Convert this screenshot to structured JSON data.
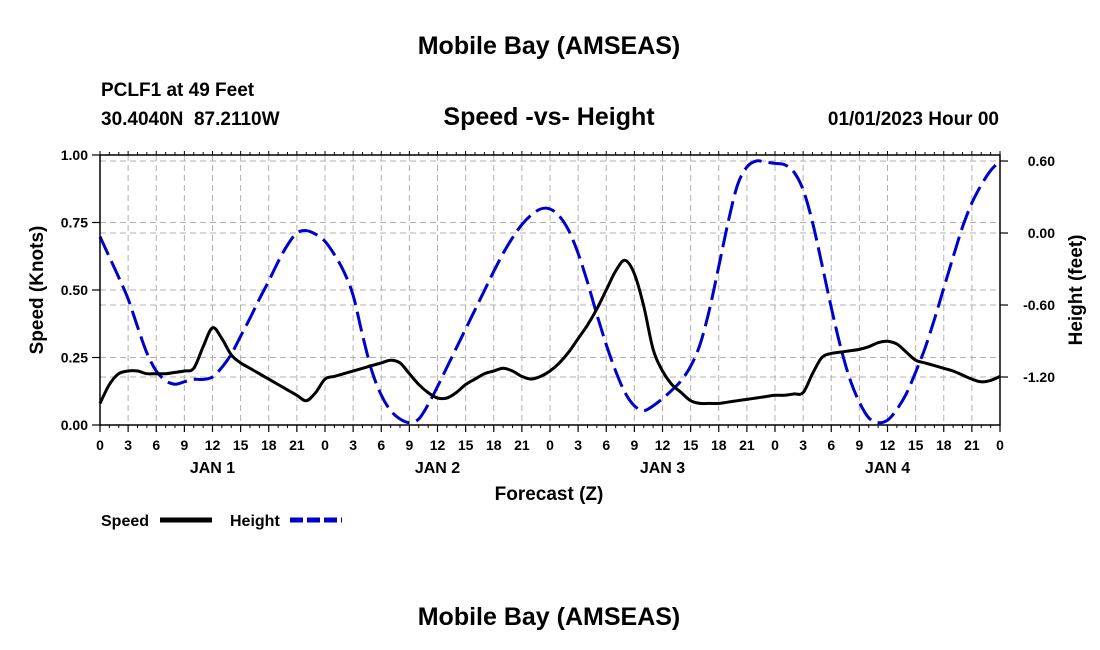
{
  "title": "Mobile Bay (AMSEAS)",
  "station_line": "PCLF1 at 49 Feet",
  "coords_line": "30.4040N  87.2110W",
  "chart_title": "Speed -vs- Height",
  "date_line": "01/01/2023 Hour 00",
  "footer_title": "Mobile Bay (AMSEAS)",
  "colors": {
    "speed": "#000000",
    "height": "#0000cc",
    "grid": "#b0b0b0"
  },
  "chart_data": {
    "type": "line",
    "title": "Speed -vs- Height",
    "xlabel": "Forecast (Z)",
    "ylabel": "Speed (Knots)",
    "y2label": "Height (feet)",
    "x_unit": "hours from 01/01/2023 00Z",
    "xlim": [
      0,
      96
    ],
    "ylim": [
      0,
      1
    ],
    "y2lim": [
      -1.6,
      0.65
    ],
    "grid": true,
    "x_ticks": [
      0,
      3,
      6,
      9,
      12,
      15,
      18,
      21,
      24,
      27,
      30,
      33,
      36,
      39,
      42,
      45,
      48,
      51,
      54,
      57,
      60,
      63,
      66,
      69,
      72,
      75,
      78,
      81,
      84,
      87,
      90,
      93,
      96
    ],
    "x_tick_labels": [
      "0",
      "3",
      "6",
      "9",
      "12",
      "15",
      "18",
      "21",
      "0",
      "3",
      "6",
      "9",
      "12",
      "15",
      "18",
      "21",
      "0",
      "3",
      "6",
      "9",
      "12",
      "15",
      "18",
      "21",
      "0",
      "3",
      "6",
      "9",
      "12",
      "15",
      "18",
      "21",
      "0"
    ],
    "day_labels": [
      {
        "x": 12,
        "label": "JAN 1"
      },
      {
        "x": 36,
        "label": "JAN 2"
      },
      {
        "x": 60,
        "label": "JAN 3"
      },
      {
        "x": 84,
        "label": "JAN 4"
      }
    ],
    "y_ticks": [
      0,
      0.25,
      0.5,
      0.75,
      1.0
    ],
    "y_tick_labels": [
      "0.00",
      "0.25",
      "0.50",
      "0.75",
      "1.00"
    ],
    "y2_ticks": [
      0.6,
      0.0,
      -0.6,
      -1.2
    ],
    "y2_tick_labels": [
      "0.60",
      "0.00",
      "-0.60",
      "-1.20"
    ],
    "legend_position": "bottom-left",
    "series": [
      {
        "name": "Speed",
        "axis": "left",
        "style": "solid",
        "x": [
          0,
          1,
          2,
          3,
          4,
          5,
          6,
          7,
          8,
          9,
          10,
          11,
          12,
          13,
          14,
          15,
          16,
          17,
          18,
          19,
          20,
          21,
          22,
          23,
          24,
          25,
          26,
          27,
          28,
          29,
          30,
          31,
          32,
          33,
          34,
          35,
          36,
          37,
          38,
          39,
          40,
          41,
          42,
          43,
          44,
          45,
          46,
          47,
          48,
          49,
          50,
          51,
          52,
          53,
          54,
          55,
          56,
          57,
          58,
          59,
          60,
          61,
          62,
          63,
          64,
          65,
          66,
          67,
          68,
          69,
          70,
          71,
          72,
          73,
          74,
          75,
          76,
          77,
          78,
          79,
          80,
          81,
          82,
          83,
          84,
          85,
          86,
          87,
          88,
          89,
          90,
          91,
          92,
          93,
          94,
          95,
          96
        ],
        "values": [
          0.08,
          0.15,
          0.19,
          0.2,
          0.2,
          0.19,
          0.19,
          0.19,
          0.195,
          0.2,
          0.21,
          0.29,
          0.36,
          0.32,
          0.26,
          0.23,
          0.21,
          0.19,
          0.17,
          0.15,
          0.13,
          0.11,
          0.09,
          0.12,
          0.17,
          0.18,
          0.19,
          0.2,
          0.21,
          0.22,
          0.23,
          0.24,
          0.23,
          0.19,
          0.15,
          0.12,
          0.1,
          0.1,
          0.12,
          0.15,
          0.17,
          0.19,
          0.2,
          0.21,
          0.2,
          0.18,
          0.17,
          0.18,
          0.2,
          0.23,
          0.27,
          0.32,
          0.37,
          0.43,
          0.5,
          0.57,
          0.61,
          0.56,
          0.44,
          0.28,
          0.2,
          0.15,
          0.12,
          0.09,
          0.08,
          0.08,
          0.08,
          0.085,
          0.09,
          0.095,
          0.1,
          0.105,
          0.11,
          0.11,
          0.115,
          0.12,
          0.19,
          0.25,
          0.265,
          0.27,
          0.275,
          0.28,
          0.29,
          0.305,
          0.31,
          0.3,
          0.27,
          0.24,
          0.23,
          0.22,
          0.21,
          0.2,
          0.185,
          0.17,
          0.16,
          0.165,
          0.18
        ]
      },
      {
        "name": "Height",
        "axis": "right",
        "style": "dashed",
        "x": [
          0,
          1,
          2,
          3,
          4,
          5,
          6,
          7,
          8,
          9,
          10,
          11,
          12,
          13,
          14,
          15,
          16,
          17,
          18,
          19,
          20,
          21,
          22,
          23,
          24,
          25,
          26,
          27,
          28,
          29,
          30,
          31,
          32,
          33,
          34,
          35,
          36,
          37,
          38,
          39,
          40,
          41,
          42,
          43,
          44,
          45,
          46,
          47,
          48,
          49,
          50,
          51,
          52,
          53,
          54,
          55,
          56,
          57,
          58,
          59,
          60,
          61,
          62,
          63,
          64,
          65,
          66,
          67,
          68,
          69,
          70,
          71,
          72,
          73,
          74,
          75,
          76,
          77,
          78,
          79,
          80,
          81,
          82,
          83,
          84,
          85,
          86,
          87,
          88,
          89,
          90,
          91,
          92,
          93,
          94,
          95,
          96
        ],
        "values": [
          -0.03,
          -0.2,
          -0.37,
          -0.55,
          -0.78,
          -1.0,
          -1.15,
          -1.23,
          -1.26,
          -1.24,
          -1.22,
          -1.22,
          -1.2,
          -1.12,
          -1.01,
          -0.86,
          -0.71,
          -0.55,
          -0.4,
          -0.24,
          -0.1,
          0.0,
          0.02,
          -0.01,
          -0.07,
          -0.18,
          -0.32,
          -0.52,
          -0.85,
          -1.15,
          -1.35,
          -1.48,
          -1.55,
          -1.58,
          -1.55,
          -1.43,
          -1.28,
          -1.12,
          -0.96,
          -0.8,
          -0.64,
          -0.48,
          -0.32,
          -0.17,
          -0.04,
          0.07,
          0.15,
          0.2,
          0.2,
          0.14,
          0.02,
          -0.17,
          -0.41,
          -0.68,
          -0.93,
          -1.15,
          -1.33,
          -1.44,
          -1.48,
          -1.44,
          -1.38,
          -1.31,
          -1.23,
          -1.11,
          -0.93,
          -0.64,
          -0.28,
          0.09,
          0.4,
          0.55,
          0.6,
          0.59,
          0.58,
          0.57,
          0.51,
          0.36,
          0.09,
          -0.26,
          -0.62,
          -0.95,
          -1.22,
          -1.41,
          -1.54,
          -1.58,
          -1.56,
          -1.47,
          -1.34,
          -1.16,
          -0.96,
          -0.72,
          -0.46,
          -0.2,
          0.05,
          0.25,
          0.4,
          0.52,
          0.6
        ]
      }
    ]
  }
}
